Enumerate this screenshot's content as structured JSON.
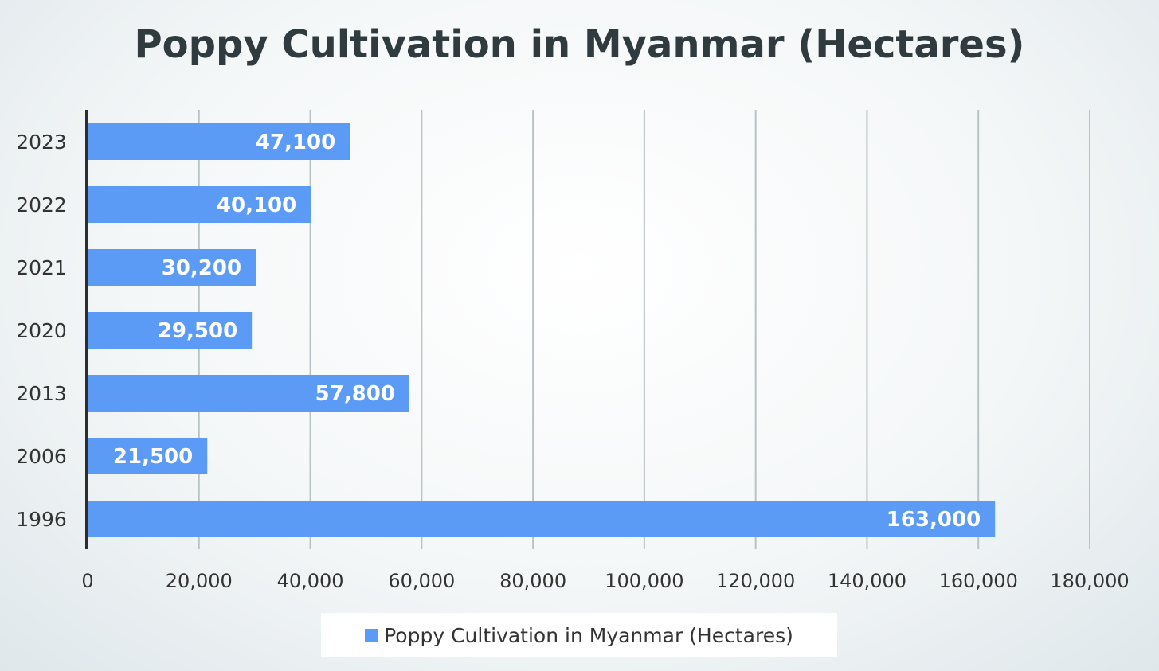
{
  "chart_data": {
    "type": "bar",
    "orientation": "horizontal",
    "title": "Poppy Cultivation in Myanmar (Hectares)",
    "categories": [
      "2023",
      "2022",
      "2021",
      "2020",
      "2013",
      "2006",
      "1996"
    ],
    "series": [
      {
        "name": "Poppy Cultivation in Myanmar (Hectares)",
        "values": [
          47100,
          40100,
          30200,
          29500,
          57800,
          21500,
          163000
        ],
        "value_labels": [
          "47,100",
          "40,100",
          "30,200",
          "29,500",
          "57,800",
          "21,500",
          "163,000"
        ],
        "color": "#5b9af5"
      }
    ],
    "xlim": [
      0,
      180000
    ],
    "x_ticks": [
      0,
      20000,
      40000,
      60000,
      80000,
      100000,
      120000,
      140000,
      160000,
      180000
    ],
    "x_tick_labels": [
      "0",
      "20,000",
      "40,000",
      "60,000",
      "80,000",
      "100,000",
      "120,000",
      "140,000",
      "160,000",
      "180,000"
    ],
    "grid": true,
    "legend_position": "bottom"
  },
  "colors": {
    "bar": "#5b9af5",
    "grid": "#b9c3c6",
    "axis": "#2d2d2d",
    "label_text": "#ffffff",
    "tick_text": "#333333"
  }
}
